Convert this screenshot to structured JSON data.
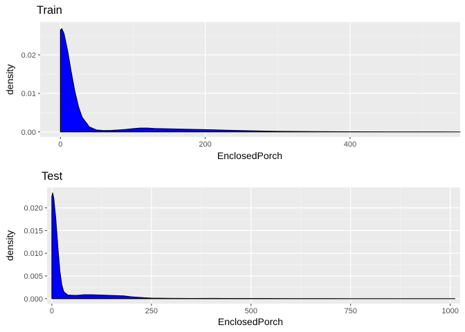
{
  "chart_data": [
    {
      "type": "area",
      "title": "Train",
      "xlabel": "EnclosedPorch",
      "ylabel": "density",
      "xlim": [
        -28,
        552
      ],
      "ylim": [
        -0.0013,
        0.0285
      ],
      "x_ticks": [
        0,
        200,
        400
      ],
      "x_tick_labels": [
        "0",
        "200",
        "400"
      ],
      "y_ticks": [
        0.0,
        0.01,
        0.02
      ],
      "y_tick_labels": [
        "0.00",
        "0.01",
        "0.02"
      ],
      "grid": true,
      "fill": "#0000ff",
      "stroke": "#000000",
      "series": [
        {
          "x": [
            0,
            2,
            5,
            10,
            15,
            20,
            25,
            30,
            40,
            50,
            60,
            70,
            80,
            90,
            100,
            110,
            120,
            130,
            150,
            170,
            200,
            230,
            260,
            300,
            350,
            400,
            450,
            500,
            552
          ],
          "y": [
            0.0265,
            0.0268,
            0.0255,
            0.021,
            0.0155,
            0.0105,
            0.0065,
            0.0038,
            0.0013,
            0.0005,
            0.00035,
            0.0004,
            0.0005,
            0.00065,
            0.00085,
            0.001,
            0.001,
            0.0009,
            0.0008,
            0.0007,
            0.0006,
            0.00045,
            0.0003,
            0.00015,
            8e-05,
            4e-05,
            2e-05,
            1e-05,
            0.0
          ]
        }
      ]
    },
    {
      "type": "area",
      "title": "Test",
      "xlabel": "EnclosedPorch",
      "ylabel": "density",
      "xlim": [
        -12,
        1025
      ],
      "ylim": [
        -0.0011,
        0.0245
      ],
      "x_ticks": [
        0,
        250,
        500,
        750,
        1000
      ],
      "x_tick_labels": [
        "0",
        "250",
        "500",
        "750",
        "1000"
      ],
      "y_ticks": [
        0.0,
        0.005,
        0.01,
        0.015,
        0.02
      ],
      "y_tick_labels": [
        "0.000",
        "0.005",
        "0.010",
        "0.015",
        "0.020"
      ],
      "grid": true,
      "fill": "#0000ff",
      "stroke": "#000000",
      "series": [
        {
          "x": [
            0,
            2,
            5,
            10,
            15,
            20,
            25,
            30,
            40,
            60,
            80,
            100,
            120,
            150,
            180,
            200,
            230,
            250,
            300,
            350,
            400,
            450,
            500,
            600,
            700,
            800,
            900,
            1012
          ],
          "y": [
            0.0225,
            0.0233,
            0.022,
            0.0175,
            0.0115,
            0.0062,
            0.003,
            0.0015,
            0.0008,
            0.0007,
            0.00085,
            0.00085,
            0.0008,
            0.0007,
            0.0006,
            0.0004,
            0.0002,
            0.00012,
            5e-05,
            4e-05,
            5e-05,
            4e-05,
            3e-05,
            2e-05,
            1e-05,
            0.0,
            0.0,
            0.0
          ]
        }
      ]
    }
  ]
}
